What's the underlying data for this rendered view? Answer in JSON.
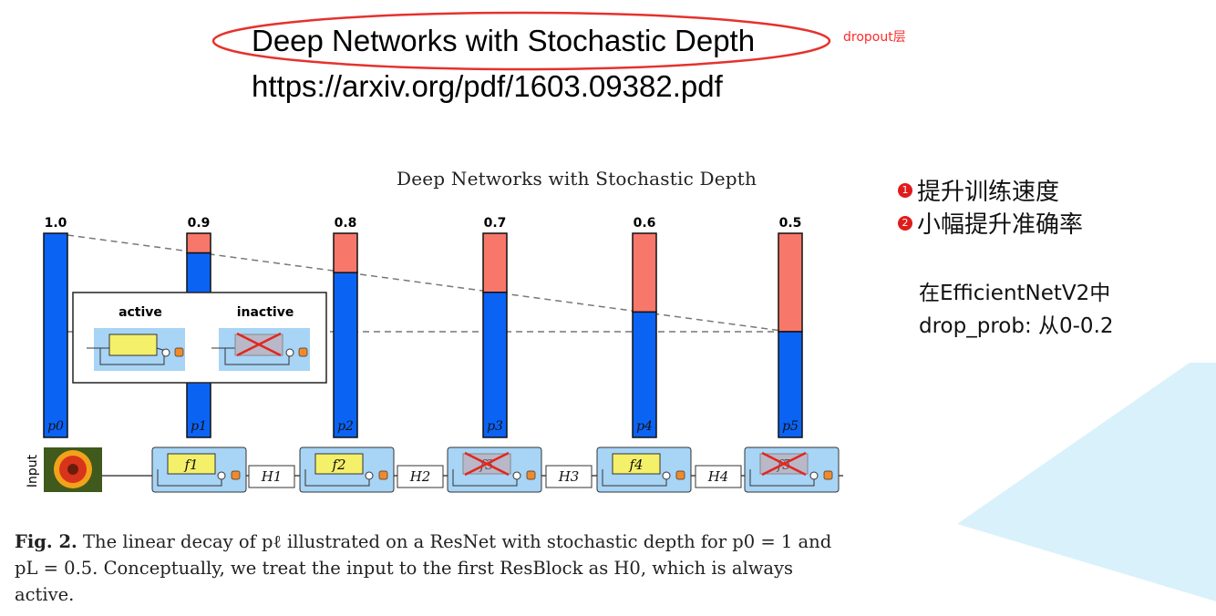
{
  "slide": {
    "title": "Deep Networks with Stochastic Depth",
    "url": "https://arxiv.org/pdf/1603.09382.pdf",
    "annotation": "dropout层"
  },
  "figure": {
    "header": "Deep Networks with Stochastic Depth",
    "survival_probs": [
      "1.0",
      "0.9",
      "0.8",
      "0.7",
      "0.6",
      "0.5"
    ],
    "bar_labels": [
      "p0",
      "p1",
      "p2",
      "p3",
      "p4",
      "p5"
    ],
    "bar_survival_values": [
      1.0,
      0.9,
      0.8,
      0.7,
      0.6,
      0.5
    ],
    "legend": {
      "active": "active",
      "inactive": "inactive"
    },
    "input_label": "Input",
    "blocks": [
      {
        "label": "f1",
        "active": true
      },
      {
        "label": "f2",
        "active": true
      },
      {
        "label": "f3",
        "active": false
      },
      {
        "label": "f4",
        "active": true
      },
      {
        "label": "f5",
        "active": false
      }
    ],
    "transitions": [
      "H1",
      "H2",
      "H3",
      "H4"
    ],
    "colors": {
      "bar_survive": "#0b63f4",
      "bar_drop": "#f7776b",
      "block_bg": "#a8d4f5",
      "func_box": "#f4f06a",
      "plus_node": "#f08a2a"
    }
  },
  "notes": {
    "item1_num": "1",
    "item1": "提升训练速度",
    "item2_num": "2",
    "item2": "小幅提升准确率",
    "effnet_line1": "在EfficientNetV2中",
    "effnet_line2": "drop_prob: 从0-0.2"
  },
  "caption": {
    "fig_label": "Fig. 2.",
    "text": "The linear decay of pℓ illustrated on a ResNet with stochastic depth for p0 = 1 and pL = 0.5. Conceptually, we treat the input to the first ResBlock as H0, which is always active."
  }
}
